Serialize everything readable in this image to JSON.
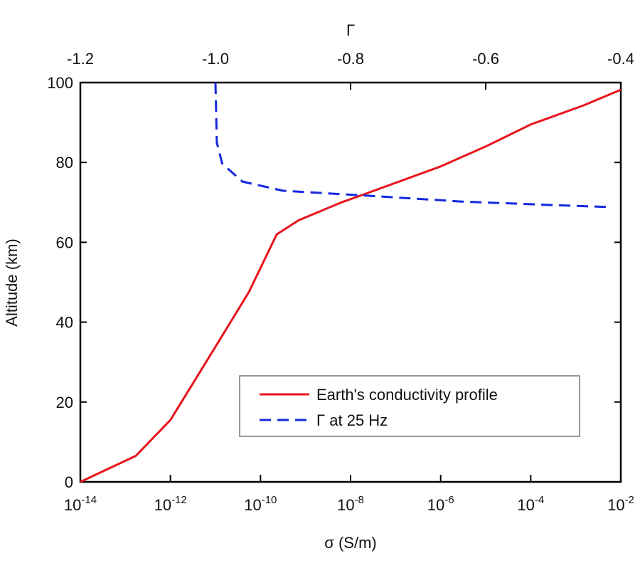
{
  "chart_data": {
    "type": "line",
    "ylabel": "Altitude (km)",
    "xlabel": "σ (S/m)",
    "x2label": "Γ",
    "xscale": "log",
    "xlim": [
      1e-14,
      0.01
    ],
    "xticks": [
      {
        "value": 1e-14,
        "label": "10",
        "exponent": "-14"
      },
      {
        "value": 1e-12,
        "label": "10",
        "exponent": "-12"
      },
      {
        "value": 1e-10,
        "label": "10",
        "exponent": "-10"
      },
      {
        "value": 1e-08,
        "label": "10",
        "exponent": "-8"
      },
      {
        "value": 1e-06,
        "label": "10",
        "exponent": "-6"
      },
      {
        "value": 0.0001,
        "label": "10",
        "exponent": "-4"
      },
      {
        "value": 0.01,
        "label": "10",
        "exponent": "-2"
      }
    ],
    "x2lim": [
      -1.2,
      -0.4
    ],
    "x2ticks": [
      -1.2,
      {
        "value": -1,
        "label": "-1.0"
      },
      -0.8,
      -0.6,
      -0.4
    ],
    "ylim": [
      0,
      100
    ],
    "yticks": [
      0,
      20,
      40,
      60,
      80,
      100
    ],
    "legend": "lower right",
    "series": [
      {
        "name": "Earth's conductivity profile",
        "color": "#e8141c",
        "dash": false,
        "x": [
          1e-14,
          1.7e-13,
          1e-12,
          9e-12,
          5.5e-11,
          2.3e-10,
          7e-10,
          6.3e-09,
          2.2e-08,
          1e-06,
          1e-05,
          0.0001,
          0.0015,
          0.01
        ],
        "values": [
          0,
          6.5,
          15.5,
          33,
          47.5,
          62,
          65.5,
          70,
          72.2,
          79,
          84,
          89.5,
          94.3,
          98.2
        ]
      },
      {
        "name": "Γ at 25 Hz",
        "color": "#1428e0",
        "dash": true,
        "axis": "x2",
        "x": [
          -1.0,
          -0.998,
          -0.99,
          -0.96,
          -0.9,
          -0.777,
          -0.635,
          -0.498,
          -0.414
        ],
        "values": [
          100,
          85,
          79.7,
          75.2,
          72.9,
          71.7,
          70.2,
          69.3,
          68.8
        ]
      }
    ]
  }
}
